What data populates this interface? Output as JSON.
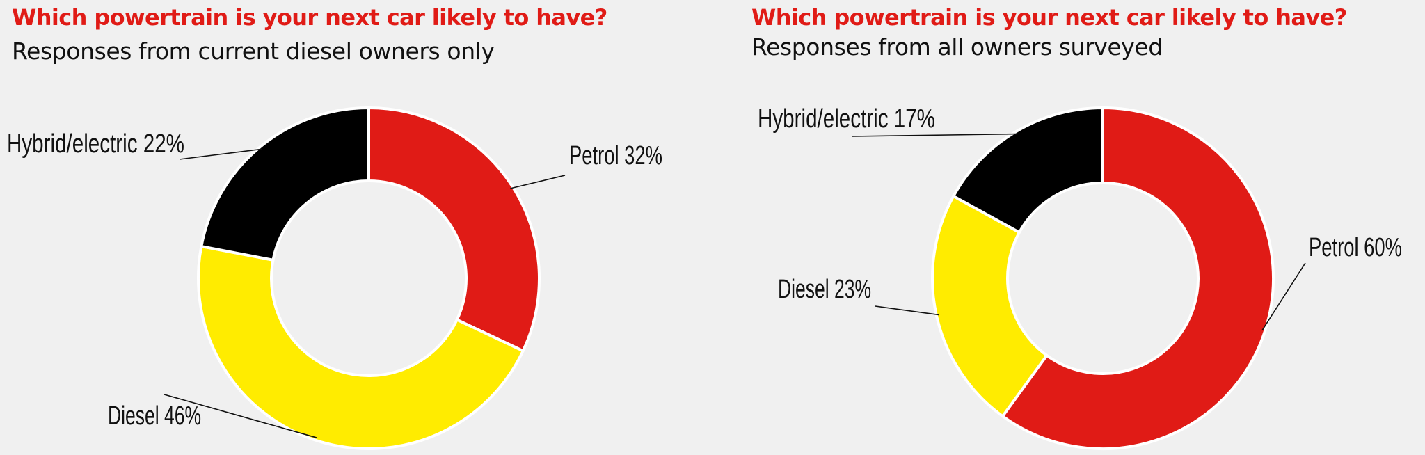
{
  "chart_data": [
    {
      "type": "pie",
      "title": "Which powertrain is your next car likely to have?",
      "subtitle": "Responses from current diesel owners only",
      "slices": [
        {
          "name": "Petrol",
          "value": 32,
          "color": "#e01b16",
          "label": "Petrol 32%"
        },
        {
          "name": "Diesel",
          "value": 46,
          "color": "#ffec00",
          "label": "Diesel 46%"
        },
        {
          "name": "Hybrid/electric",
          "value": 22,
          "color": "#000000",
          "label": "Hybrid/electric 22%"
        }
      ]
    },
    {
      "type": "pie",
      "title": "Which powertrain is your next car likely to have?",
      "subtitle": "Responses from all owners surveyed",
      "slices": [
        {
          "name": "Petrol",
          "value": 60,
          "color": "#e01b16",
          "label": "Petrol 60%"
        },
        {
          "name": "Diesel",
          "value": 23,
          "color": "#ffec00",
          "label": "Diesel 23%"
        },
        {
          "name": "Hybrid/electric",
          "value": 17,
          "color": "#000000",
          "label": "Hybrid/electric 17%"
        }
      ]
    }
  ]
}
